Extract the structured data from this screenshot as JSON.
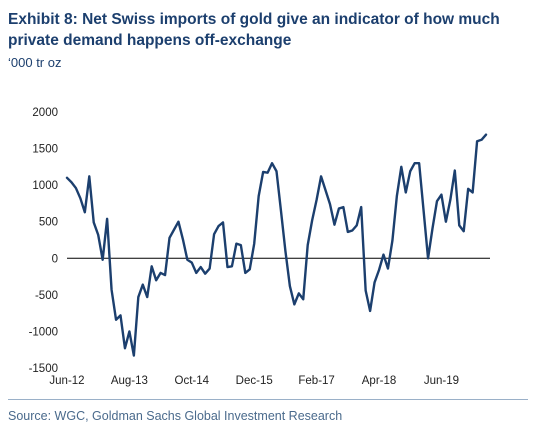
{
  "exhibit": {
    "title": "Exhibit 8: Net Swiss imports of gold give an indicator of how much private demand happens off-exchange",
    "unit": "‘000 tr oz",
    "source": "Source: WGC, Goldman Sachs Global Investment Research"
  },
  "colors": {
    "line": "#1c3f6e",
    "title": "#1c3f6e",
    "axis": "#000000"
  },
  "chart_data": {
    "type": "line",
    "title": "Exhibit 8: Net Swiss imports of gold give an indicator of how much private demand happens off-exchange",
    "ylabel": "‘000 tr oz",
    "xlabel": "",
    "ylim": [
      -1500,
      2000
    ],
    "yticks": [
      -1500,
      -1000,
      -500,
      0,
      500,
      1000,
      1500,
      2000
    ],
    "xticks": [
      "Jun-12",
      "Aug-13",
      "Oct-14",
      "Dec-15",
      "Feb-17",
      "Apr-18",
      "Jun-19"
    ],
    "grid": false,
    "legend": "none",
    "series": [
      {
        "values": [
          1100,
          1040,
          960,
          820,
          630,
          1120,
          490,
          320,
          -20,
          540,
          -430,
          -840,
          -780,
          -1230,
          -1000,
          -1330,
          -530,
          -360,
          -530,
          -110,
          -300,
          -200,
          -230,
          280,
          390,
          500,
          260,
          -20,
          -60,
          -200,
          -120,
          -210,
          -140,
          330,
          440,
          490,
          -120,
          -110,
          200,
          180,
          -200,
          -150,
          200,
          850,
          1180,
          1170,
          1300,
          1190,
          650,
          100,
          -380,
          -630,
          -480,
          -560,
          180,
          520,
          800,
          1120,
          930,
          740,
          460,
          680,
          700,
          360,
          380,
          450,
          700,
          -440,
          -720,
          -330,
          -160,
          50,
          -140,
          240,
          850,
          1250,
          900,
          1190,
          1300,
          1300,
          650,
          0,
          410,
          780,
          870,
          500,
          800,
          1200,
          450,
          370,
          950,
          900,
          1600,
          1620,
          1690
        ]
      }
    ]
  }
}
